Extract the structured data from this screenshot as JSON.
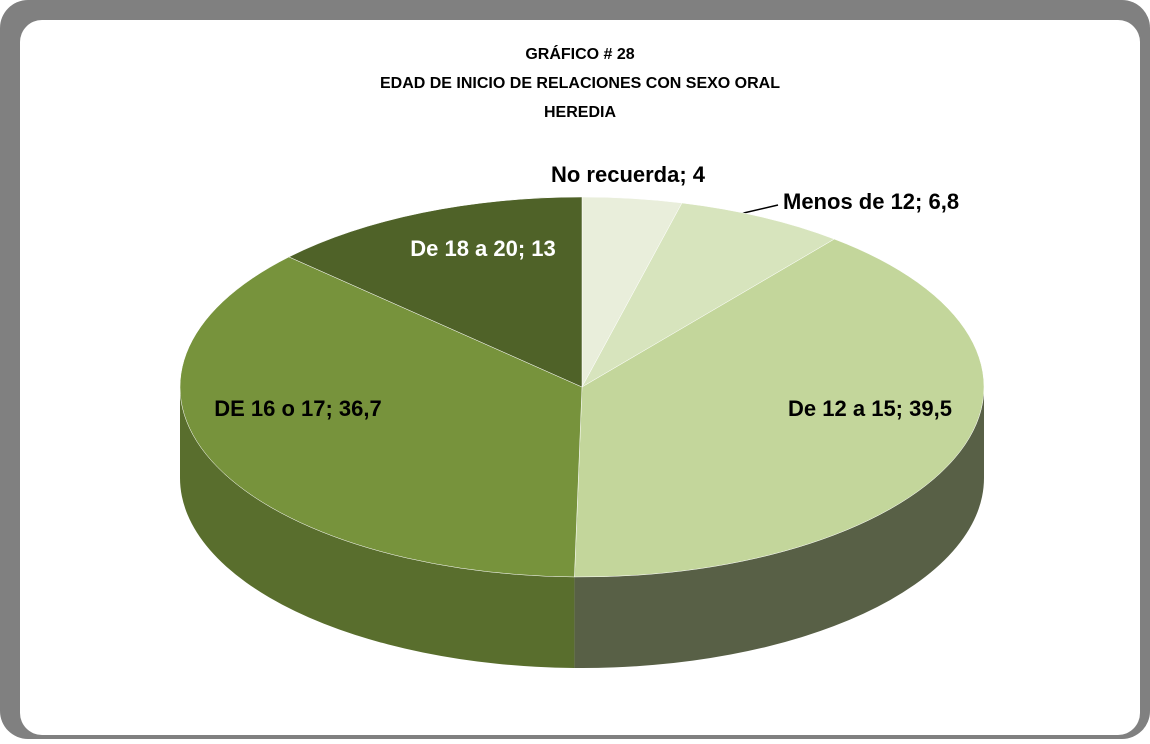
{
  "chart_data": {
    "type": "pie",
    "title": [
      "GRÁFICO # 28",
      "EDAD DE INICIO DE RELACIONES CON SEXO ORAL",
      "HEREDIA"
    ],
    "values": [
      4,
      6.8,
      39.5,
      36.7,
      13
    ],
    "value_labels": [
      "No recuerda; 4",
      "Menos de 12; 6,8",
      "De 12 a 15; 39,5",
      "DE 16 o 17; 36,7",
      "De 18 a 20; 13"
    ],
    "colors": [
      "#e9eedb",
      "#d7e4bd",
      "#c3d69b",
      "#77933c",
      "#4f6228"
    ]
  }
}
